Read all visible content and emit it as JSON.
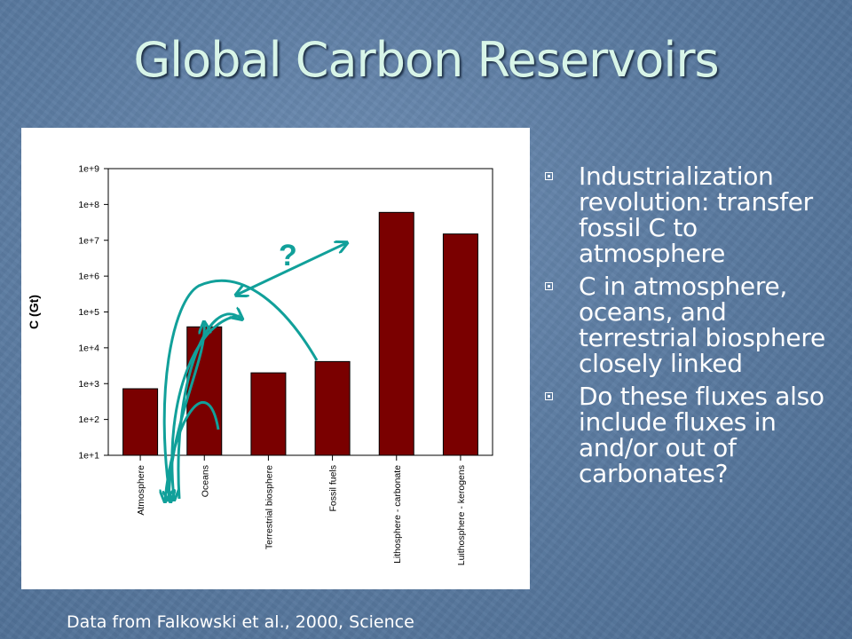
{
  "slide": {
    "title": "Global Carbon Reservoirs",
    "source": "Data from Falkowski et al., 2000, Science"
  },
  "bullets": [
    "Industrialization revolution: transfer fossil C to atmosphere",
    "C in atmosphere, oceans, and terrestrial biosphere closely linked",
    "Do these fluxes also include fluxes in and/or out of carbonates?"
  ],
  "chart_data": {
    "type": "bar",
    "scale": "log",
    "ylabel": "C (Gt)",
    "xlabel": "",
    "ylim": [
      10,
      1000000000
    ],
    "yticks": [
      {
        "value": 10,
        "label": "1e+1"
      },
      {
        "value": 100,
        "label": "1e+2"
      },
      {
        "value": 1000,
        "label": "1e+3"
      },
      {
        "value": 10000,
        "label": "1e+4"
      },
      {
        "value": 100000,
        "label": "1e+5"
      },
      {
        "value": 1000000,
        "label": "1e+6"
      },
      {
        "value": 10000000,
        "label": "1e+7"
      },
      {
        "value": 100000000,
        "label": "1e+8"
      },
      {
        "value": 1000000000,
        "label": "1e+9"
      }
    ],
    "categories": [
      "Atmosphere",
      "Oceans",
      "Terrestrial biosphere",
      "Fossil fuels",
      "Lithosphere - carbonate",
      "Luithosphere - kerogens"
    ],
    "values": [
      720,
      38400,
      2000,
      4130,
      60000000,
      15000000
    ],
    "bar_color": "#7a0000",
    "arrow_color": "#11a09a",
    "annotation": "?"
  }
}
